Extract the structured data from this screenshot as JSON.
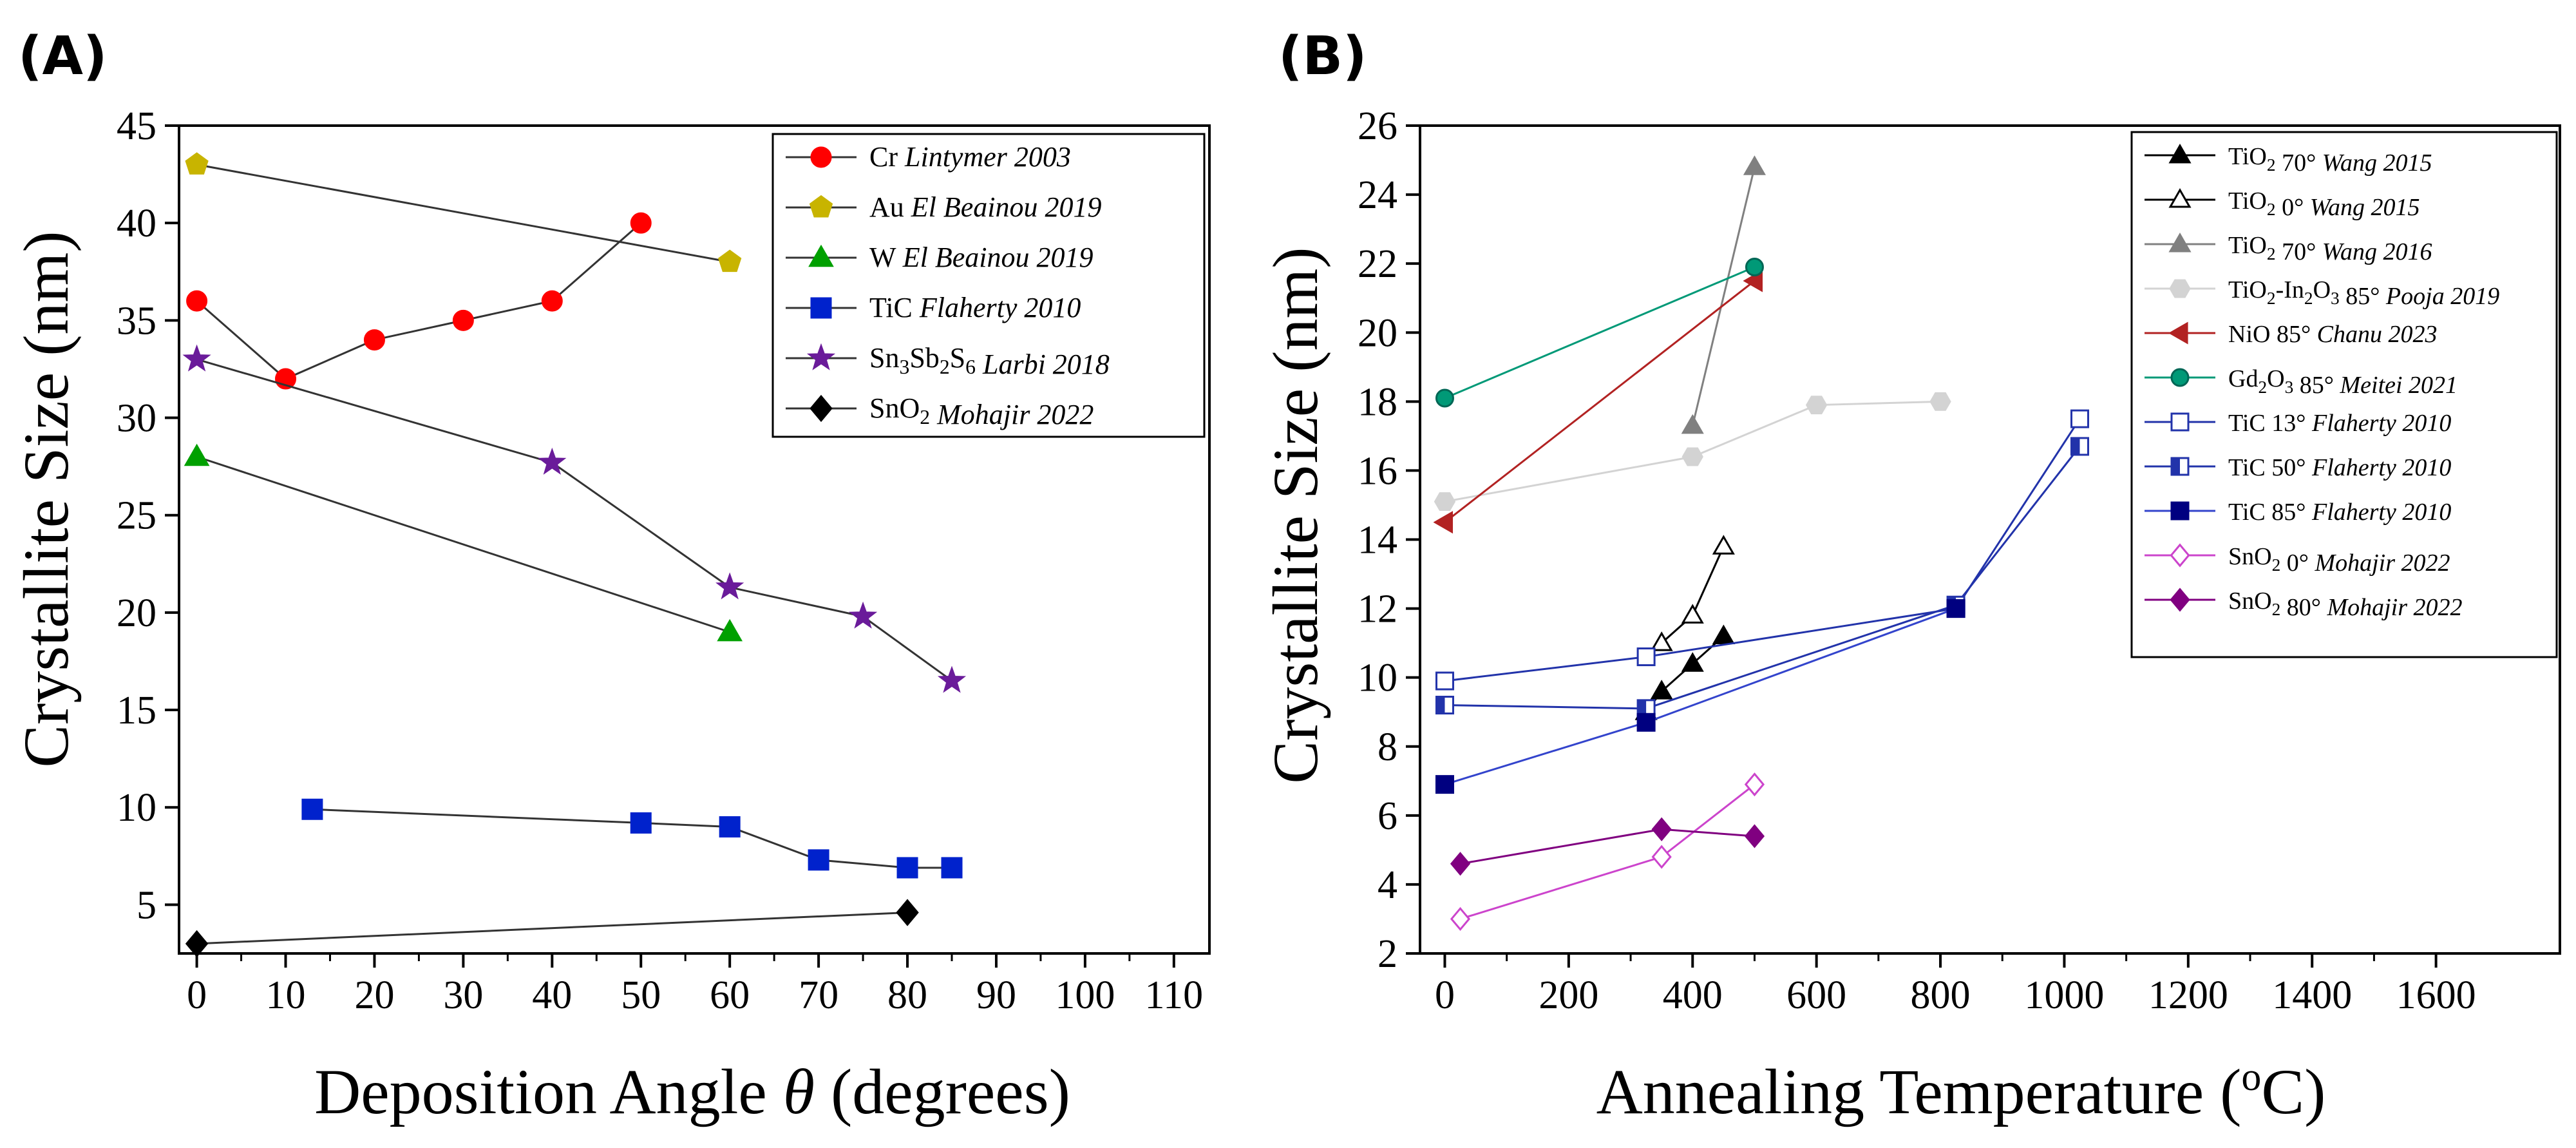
{
  "chart_data": [
    {
      "type": "line",
      "panel_label": "(A)",
      "xlabel_prefix": "Deposition Angle ",
      "xlabel_symbol": "θ",
      "xlabel_suffix": " (degrees)",
      "ylabel": "Crystallite Size (nm)",
      "xlim": [
        -2,
        114
      ],
      "ylim": [
        2.5,
        45
      ],
      "xticks": [
        0,
        10,
        20,
        30,
        40,
        50,
        60,
        70,
        80,
        90,
        100,
        110
      ],
      "yticks": [
        5,
        10,
        15,
        20,
        25,
        30,
        35,
        40,
        45
      ],
      "legend_position": "top-right",
      "series": [
        {
          "name": "Cr",
          "ref": "Lintymer 2003",
          "color": "#ff0000",
          "line_color": "#333333",
          "marker": "circle",
          "x": [
            0,
            10,
            20,
            30,
            40,
            50
          ],
          "y": [
            36,
            32,
            34,
            35,
            36,
            40
          ]
        },
        {
          "name": "Au",
          "ref": "El Beainou 2019",
          "color": "#c8b400",
          "line_color": "#333333",
          "marker": "pentagon",
          "x": [
            0,
            60
          ],
          "y": [
            43,
            38
          ]
        },
        {
          "name": "W",
          "ref": "El Beainou 2019",
          "color": "#00a000",
          "line_color": "#333333",
          "marker": "triangle-up",
          "x": [
            0,
            60
          ],
          "y": [
            28,
            19
          ]
        },
        {
          "name": "TiC",
          "ref": "Flaherty 2010",
          "color": "#0022cc",
          "line_color": "#333333",
          "marker": "square",
          "x": [
            13,
            50,
            60,
            70,
            80,
            85
          ],
          "y": [
            9.9,
            9.2,
            9.0,
            7.3,
            6.9,
            6.9
          ]
        },
        {
          "name": "Sn3Sb2S6",
          "ref": "Larbi 2018",
          "color": "#6a1b9a",
          "line_color": "#333333",
          "marker": "star",
          "x": [
            0,
            40,
            60,
            75,
            85
          ],
          "y": [
            33,
            27.7,
            21.3,
            19.8,
            16.5
          ]
        },
        {
          "name": "SnO2",
          "ref": "Mohajir 2022",
          "color": "#000000",
          "line_color": "#333333",
          "marker": "diamond",
          "x": [
            0,
            80
          ],
          "y": [
            3,
            4.6
          ]
        }
      ]
    },
    {
      "type": "line",
      "panel_label": "(B)",
      "xlabel": "Annealing Temperature (",
      "xlabel_unit_sup": "o",
      "xlabel_unit": "C)",
      "ylabel": "Crystallite Size (nm)",
      "xlim": [
        -40,
        1800
      ],
      "ylim": [
        2,
        26
      ],
      "xticks": [
        0,
        200,
        400,
        600,
        800,
        1000,
        1200,
        1400,
        1600
      ],
      "yticks": [
        2,
        4,
        6,
        8,
        10,
        12,
        14,
        16,
        18,
        20,
        22,
        24,
        26
      ],
      "legend_position": "top-right",
      "series": [
        {
          "name": "TiO2 70° ",
          "ref": "Wang 2015",
          "color": "#000000",
          "line_color": "#000000",
          "marker": "triangle-up",
          "fill": "solid",
          "x": [
            325,
            350,
            400,
            450
          ],
          "y": [
            9.0,
            9.6,
            10.4,
            11.2
          ]
        },
        {
          "name": "TiO2 0° ",
          "ref": "Wang 2015",
          "color": "#000000",
          "line_color": "#000000",
          "marker": "triangle-up",
          "fill": "open",
          "x": [
            350,
            400,
            450
          ],
          "y": [
            11.0,
            11.8,
            13.8
          ]
        },
        {
          "name": "TiO2 70° ",
          "ref": "Wang 2016",
          "color": "#808080",
          "line_color": "#808080",
          "marker": "triangle-up",
          "fill": "solid",
          "x": [
            400,
            500
          ],
          "y": [
            17.3,
            24.8
          ]
        },
        {
          "name": "TiO2-In2O3 85° ",
          "ref": "Pooja 2019",
          "color": "#d3d3d3",
          "line_color": "#d3d3d3",
          "marker": "hexagon",
          "fill": "solid",
          "x": [
            0,
            400,
            600,
            800
          ],
          "y": [
            15.1,
            16.4,
            17.9,
            18.0
          ]
        },
        {
          "name": "NiO 85° ",
          "ref": "Chanu 2023",
          "color": "#b22222",
          "line_color": "#b22222",
          "marker": "triangle-left",
          "fill": "solid",
          "x": [
            0,
            500
          ],
          "y": [
            14.5,
            21.5
          ]
        },
        {
          "name": "Gd2O3 85° ",
          "ref": "Meitei 2021",
          "color": "#009977",
          "line_color": "#009977",
          "marker": "sphere",
          "fill": "solid",
          "x": [
            0,
            500
          ],
          "y": [
            18.1,
            21.9
          ]
        },
        {
          "name": "TiC 13° ",
          "ref": "Flaherty 2010",
          "color": "#2233aa",
          "line_color": "#2233aa",
          "marker": "square",
          "fill": "open",
          "x": [
            0,
            325,
            825,
            1025
          ],
          "y": [
            9.9,
            10.6,
            12.0,
            17.5
          ]
        },
        {
          "name": "TiC 50° ",
          "ref": "Flaherty 2010",
          "color": "#2233aa",
          "line_color": "#2233aa",
          "marker": "square",
          "fill": "half",
          "x": [
            0,
            325,
            825,
            1025
          ],
          "y": [
            9.2,
            9.1,
            12.1,
            16.7
          ]
        },
        {
          "name": "TiC 85° ",
          "ref": "Flaherty 2010",
          "color": "#000080",
          "line_color": "#3344cc",
          "marker": "square",
          "fill": "solid",
          "x": [
            0,
            325,
            825
          ],
          "y": [
            6.9,
            8.7,
            12.0
          ]
        },
        {
          "name": "SnO2 0° ",
          "ref": "Mohajir 2022",
          "color": "#cc44cc",
          "line_color": "#cc44cc",
          "marker": "diamond",
          "fill": "open",
          "x": [
            25,
            350,
            500
          ],
          "y": [
            3.0,
            4.8,
            6.9
          ]
        },
        {
          "name": "SnO2 80° ",
          "ref": "Mohajir 2022",
          "color": "#800080",
          "line_color": "#800080",
          "marker": "diamond",
          "fill": "solid",
          "x": [
            25,
            350,
            500
          ],
          "y": [
            4.6,
            5.6,
            5.4
          ]
        }
      ]
    }
  ]
}
